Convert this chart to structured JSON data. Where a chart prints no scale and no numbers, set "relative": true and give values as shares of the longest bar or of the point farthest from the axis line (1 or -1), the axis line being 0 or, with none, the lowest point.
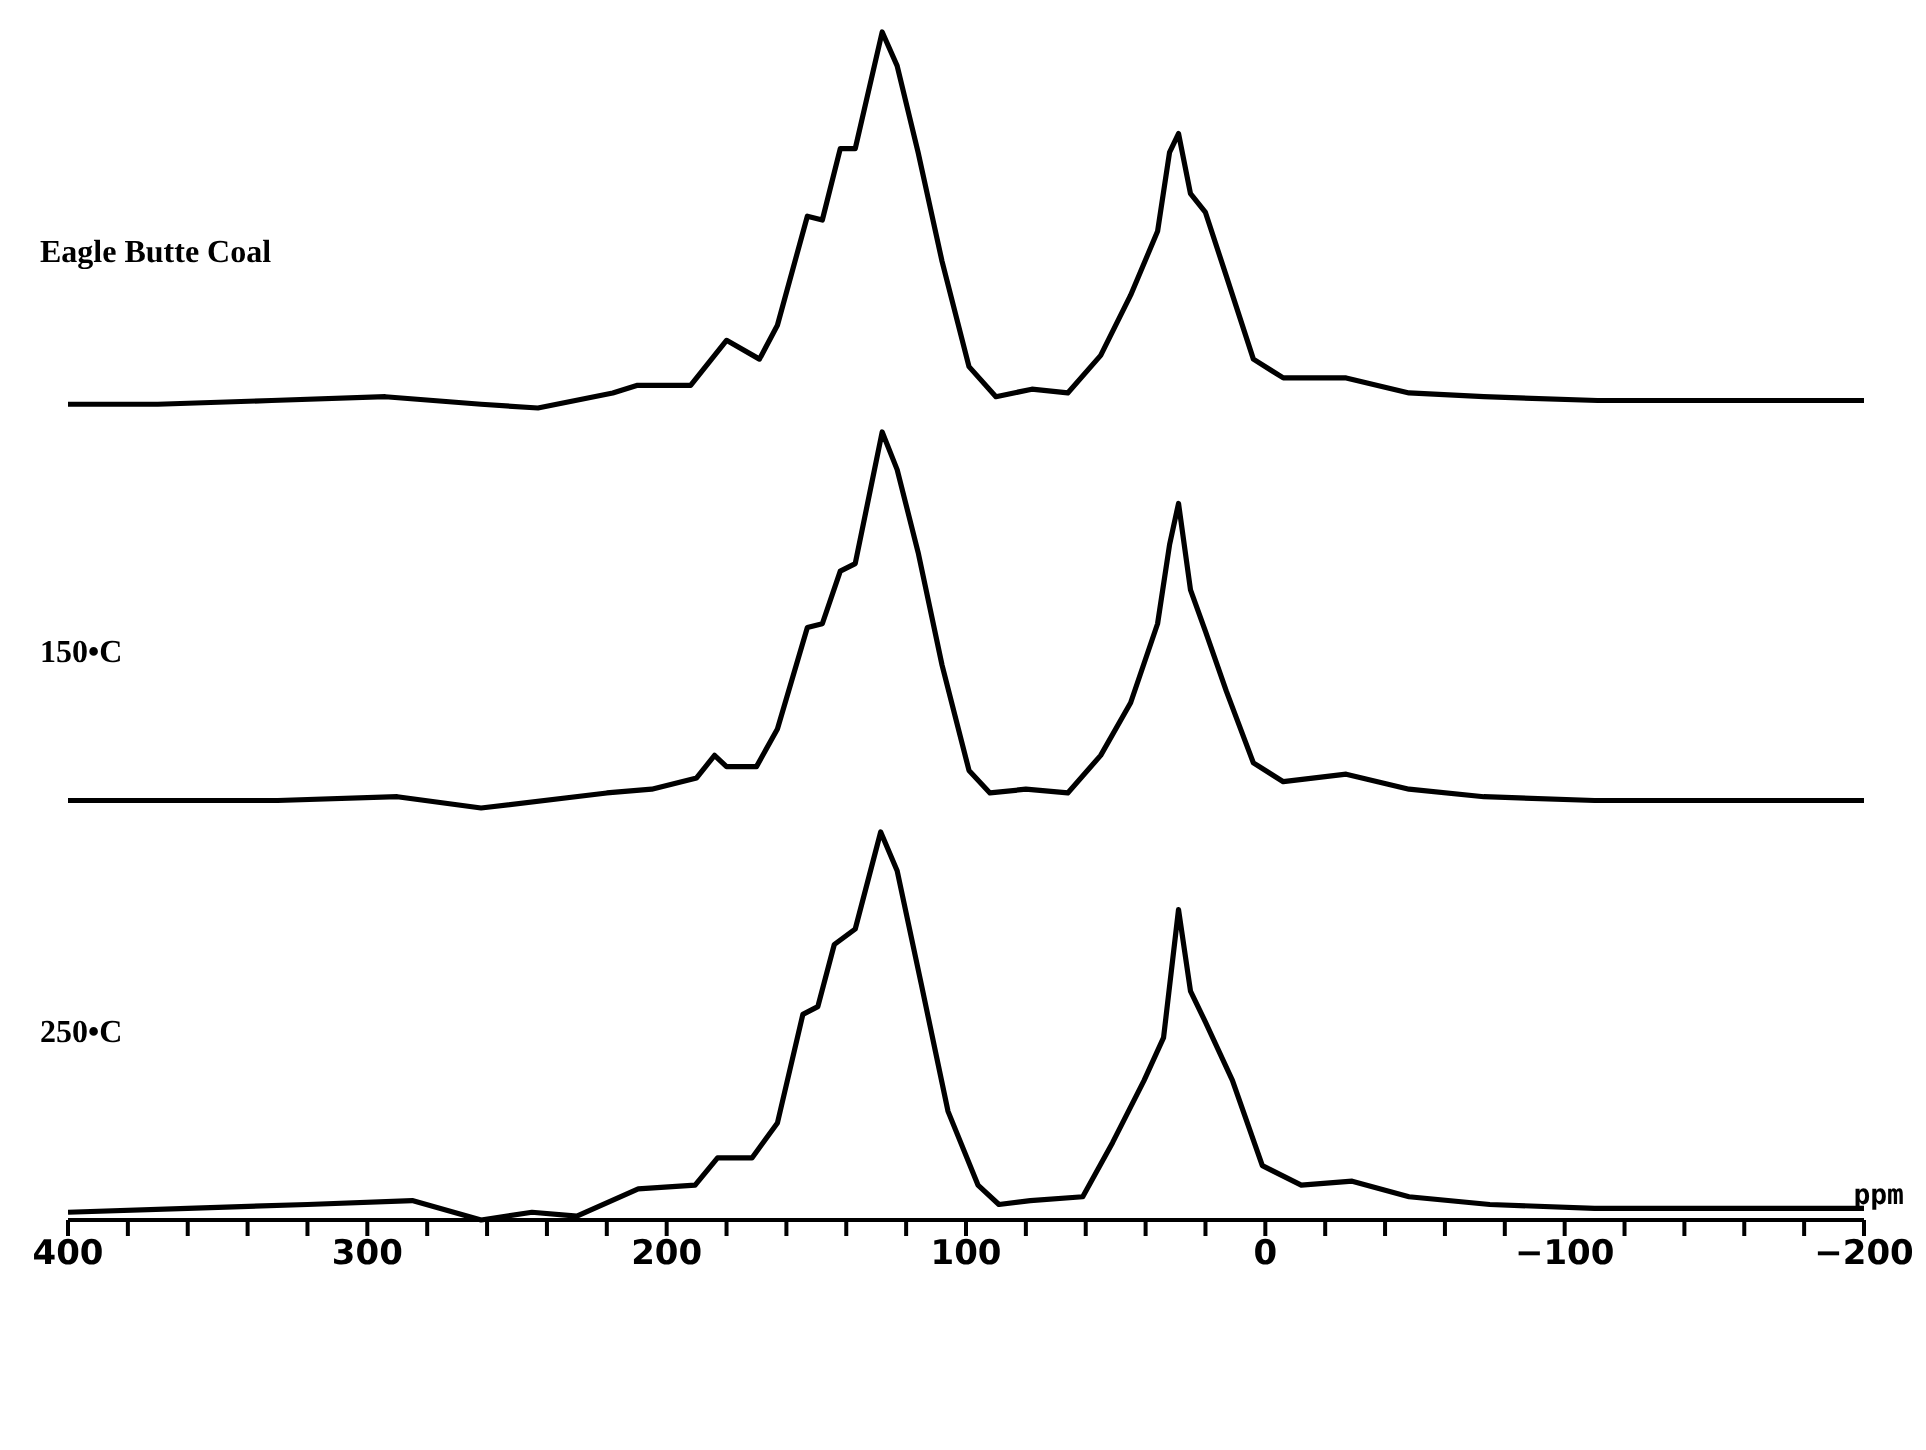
{
  "chart_data": [
    {
      "type": "line",
      "title": "Eagle Butte Coal",
      "relative": true,
      "tick_labels": false,
      "xlim": [
        400,
        -200
      ],
      "x": [
        400,
        370,
        332,
        294,
        262,
        243,
        218,
        210,
        192,
        180,
        169,
        163,
        153,
        148,
        142,
        137,
        128,
        123,
        116,
        108,
        99,
        90,
        78,
        66,
        55,
        45,
        36,
        32,
        29,
        25,
        20,
        13,
        4,
        -6,
        -27,
        -48,
        -73,
        -111,
        -162,
        -200
      ],
      "series": [
        {
          "color": "#000000",
          "values": [
            0.01,
            0.01,
            0.02,
            0.03,
            0.01,
            0,
            0.04,
            0.06,
            0.06,
            0.18,
            0.13,
            0.22,
            0.51,
            0.5,
            0.69,
            0.69,
            1,
            0.91,
            0.68,
            0.39,
            0.11,
            0.03,
            0.05,
            0.04,
            0.14,
            0.3,
            0.47,
            0.68,
            0.73,
            0.57,
            0.52,
            0.35,
            0.13,
            0.08,
            0.08,
            0.04,
            0.03,
            0.02,
            0.02,
            0.02
          ]
        }
      ]
    },
    {
      "type": "line",
      "title": "150•C",
      "relative": true,
      "tick_labels": false,
      "xlim": [
        400,
        -200
      ],
      "x": [
        400,
        370,
        330,
        290,
        262,
        220,
        205,
        190,
        184,
        180,
        170,
        163,
        153,
        148,
        142,
        137,
        128,
        123,
        116,
        108,
        99,
        92,
        80,
        66,
        55,
        45,
        36,
        32,
        29,
        25,
        20,
        13,
        4,
        -6,
        -27,
        -48,
        -73,
        -110,
        -160,
        -200
      ],
      "series": [
        {
          "color": "#000000",
          "values": [
            0.02,
            0.02,
            0.02,
            0.03,
            0,
            0.04,
            0.05,
            0.08,
            0.14,
            0.11,
            0.11,
            0.21,
            0.48,
            0.49,
            0.63,
            0.65,
            1,
            0.9,
            0.68,
            0.38,
            0.1,
            0.04,
            0.05,
            0.04,
            0.14,
            0.28,
            0.49,
            0.7,
            0.81,
            0.58,
            0.47,
            0.31,
            0.12,
            0.07,
            0.09,
            0.05,
            0.03,
            0.02,
            0.02,
            0.02
          ]
        }
      ]
    },
    {
      "type": "line",
      "title": "250•C",
      "xlabel": "ppm",
      "relative": true,
      "xlim": [
        400,
        -200
      ],
      "xticks": [
        400,
        {
          "value": 380,
          "label": null
        },
        {
          "value": 360,
          "label": null
        },
        {
          "value": 340,
          "label": null
        },
        {
          "value": 320,
          "label": null
        },
        300,
        {
          "value": 280,
          "label": null
        },
        {
          "value": 260,
          "label": null
        },
        {
          "value": 240,
          "label": null
        },
        {
          "value": 220,
          "label": null
        },
        200,
        {
          "value": 180,
          "label": null
        },
        {
          "value": 160,
          "label": null
        },
        {
          "value": 140,
          "label": null
        },
        {
          "value": 120,
          "label": null
        },
        100,
        {
          "value": 80,
          "label": null
        },
        {
          "value": 60,
          "label": null
        },
        {
          "value": 40,
          "label": null
        },
        {
          "value": 20,
          "label": null
        },
        0,
        {
          "value": -20,
          "label": null
        },
        {
          "value": -40,
          "label": null
        },
        {
          "value": -60,
          "label": null
        },
        {
          "value": -80,
          "label": null
        },
        -100,
        {
          "value": -120,
          "label": null
        },
        {
          "value": -140,
          "label": null
        },
        {
          "value": -160,
          "label": null
        },
        {
          "value": -180,
          "label": null
        },
        -200
      ],
      "x": [
        400,
        360,
        320,
        285,
        262,
        245,
        230,
        209.5,
        190.5,
        183,
        171.5,
        163,
        154.5,
        149.5,
        144,
        137,
        128.5,
        123,
        115,
        106,
        96,
        89,
        78.5,
        61,
        51,
        40.5,
        34,
        29,
        25,
        20,
        11,
        1,
        -12,
        -29,
        -48,
        -75,
        -110,
        -160,
        -200
      ],
      "series": [
        {
          "color": "#000000",
          "values": [
            0.02,
            0.03,
            0.04,
            0.05,
            0,
            0.02,
            0.01,
            0.08,
            0.09,
            0.16,
            0.16,
            0.25,
            0.53,
            0.55,
            0.71,
            0.75,
            1,
            0.9,
            0.61,
            0.28,
            0.09,
            0.04,
            0.05,
            0.06,
            0.2,
            0.36,
            0.47,
            0.8,
            0.59,
            0.51,
            0.36,
            0.14,
            0.09,
            0.1,
            0.06,
            0.04,
            0.03,
            0.03,
            0.03
          ]
        }
      ]
    }
  ]
}
